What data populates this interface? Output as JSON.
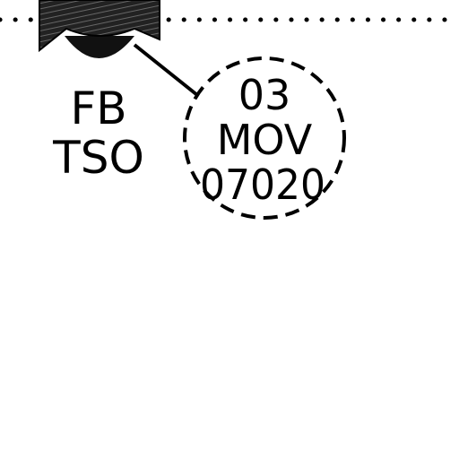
{
  "valve_label": {
    "line1": "FB",
    "line2": "TSO"
  },
  "tag_bubble": {
    "line1": "03",
    "line2": "MOV",
    "line3": "07020"
  },
  "colors": {
    "ink": "#000000",
    "paper": "#ffffff"
  }
}
